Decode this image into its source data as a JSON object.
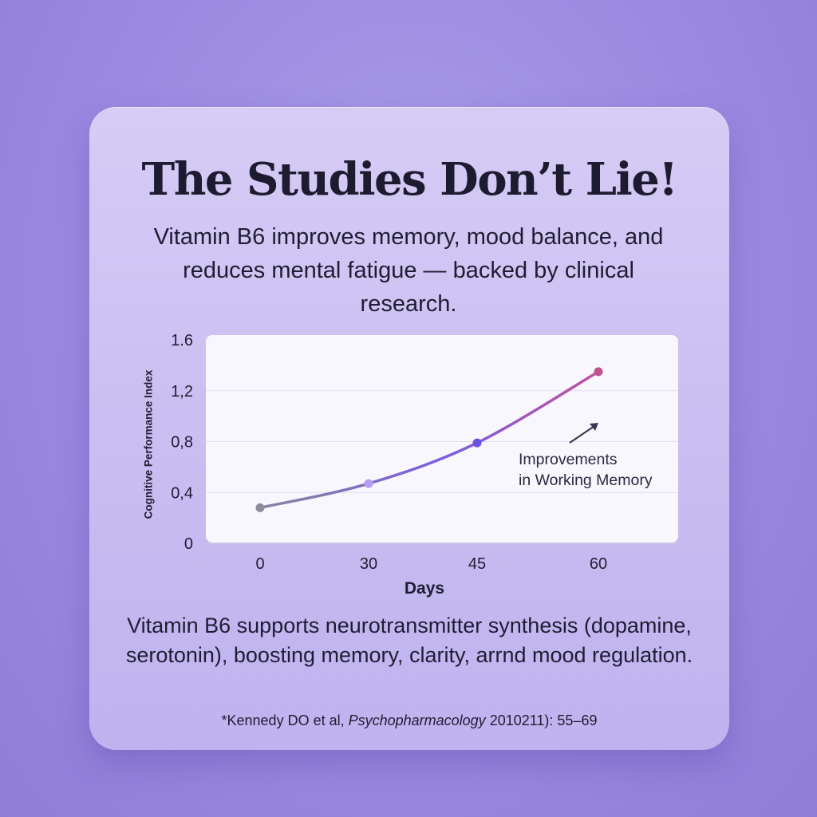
{
  "card": {
    "title": "The Studies Don’t Lie!",
    "subtitle": "Vitamin B6 improves memory, mood balance, and reduces mental fatigue — backed by clinical research.",
    "body": "Vitamin B6 supports neurotransmitter synthesis (dopamine, serotonin), boosting memory, clarity, arrnd mood regulation.",
    "citation": {
      "prefix": "*Kennedy DO et al, ",
      "journal": "Psychopharmacology",
      "suffix": "  2010211): 55–69"
    }
  },
  "chart_data": {
    "type": "line",
    "title": "",
    "xlabel": "Days",
    "ylabel": "Cognitive Performance Index",
    "x": [
      0,
      30,
      45,
      60
    ],
    "x_tick_labels": [
      "0",
      "30",
      "45",
      "60"
    ],
    "y_ticks": [
      0,
      0.4,
      0.8,
      1.2,
      1.6
    ],
    "y_tick_labels": [
      "0",
      "0,4",
      "0,8",
      "1,2",
      "1.6"
    ],
    "ylim": [
      0,
      1.6
    ],
    "grid": true,
    "series": [
      {
        "values": [
          0.28,
          0.47,
          0.79,
          1.35
        ]
      }
    ],
    "annotation": {
      "lines": [
        "Improvements",
        "in Working Memory"
      ]
    },
    "colors": {
      "line_start": "#8a849e",
      "line_mid": "#7b5ce0",
      "line_end": "#c0529a",
      "points": [
        "#8e8a9e",
        "#b79df0",
        "#6a52e0",
        "#c2518f"
      ]
    }
  }
}
